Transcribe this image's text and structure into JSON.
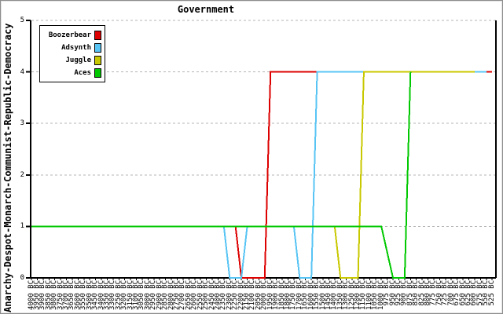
{
  "chart_data": {
    "type": "line",
    "title": "Government",
    "xlabel": "",
    "ylabel": "Anarchy-Despot-Monarch-Communist-Republic-Democracy",
    "government_scale": [
      "Anarchy",
      "Despot",
      "Monarch",
      "Communist",
      "Republic",
      "Democracy"
    ],
    "ylim": [
      0,
      5
    ],
    "yticks": [
      0,
      1,
      2,
      3,
      4,
      5
    ],
    "grid": "horizontal dashed gridlines at 1-5",
    "legend_position": "top-left",
    "x_tick_labels": [
      "4000 BC",
      "3950 BC",
      "3900 BC",
      "3850 BC",
      "3800 BC",
      "3750 BC",
      "3700 BC",
      "3650 BC",
      "3600 BC",
      "3550 BC",
      "3500 BC",
      "3450 BC",
      "3400 BC",
      "3350 BC",
      "3300 BC",
      "3250 BC",
      "3200 BC",
      "3150 BC",
      "3100 BC",
      "3050 BC",
      "3000 BC",
      "2950 BC",
      "2900 BC",
      "2850 BC",
      "2800 BC",
      "2750 BC",
      "2700 BC",
      "2650 BC",
      "2600 BC",
      "2550 BC",
      "2500 BC",
      "2450 BC",
      "2400 BC",
      "2350 BC",
      "2300 BC",
      "2250 BC",
      "2200 BC",
      "2150 BC",
      "2100 BC",
      "2050 BC",
      "2000 BC",
      "1950 BC",
      "1900 BC",
      "1850 BC",
      "1800 BC",
      "1750 BC",
      "1700 BC",
      "1650 BC",
      "1600 BC",
      "1550 BC",
      "1500 BC",
      "1450 BC",
      "1400 BC",
      "1350 BC",
      "1300 BC",
      "1250 BC",
      "1200 BC",
      "1150 BC",
      "1100 BC",
      "1050 BC",
      "1000 BC",
      "975 BC",
      "950 BC",
      "925 BC",
      "900 BC",
      "875 BC",
      "850 BC",
      "825 BC",
      "800 BC",
      "775 BC",
      "750 BC",
      "725 BC",
      "700 BC",
      "675 BC",
      "650 BC",
      "625 BC",
      "600 BC",
      "575 BC",
      "550 BC",
      "525 BC"
    ],
    "series": [
      {
        "name": "Boozerbear",
        "color": "#dd0000",
        "points_turn_value": [
          [
            0,
            1
          ],
          [
            35,
            1
          ],
          [
            36,
            0
          ],
          [
            40,
            0
          ],
          [
            41,
            4
          ],
          [
            79,
            4
          ]
        ]
      },
      {
        "name": "Adsynth",
        "color": "#58c4f4",
        "points_turn_value": [
          [
            0,
            1
          ],
          [
            33,
            1
          ],
          [
            34,
            0
          ],
          [
            36,
            0
          ],
          [
            37,
            1
          ],
          [
            45,
            1
          ],
          [
            46,
            0
          ],
          [
            48,
            0
          ],
          [
            49,
            4
          ],
          [
            78,
            4
          ]
        ]
      },
      {
        "name": "Juggle",
        "color": "#c8c800",
        "points_turn_value": [
          [
            0,
            1
          ],
          [
            52,
            1
          ],
          [
            53,
            0
          ],
          [
            56,
            0
          ],
          [
            57,
            4
          ],
          [
            76,
            4
          ]
        ]
      },
      {
        "name": "Aces",
        "color": "#00c800",
        "points_turn_value": [
          [
            0,
            1
          ],
          [
            60,
            1
          ],
          [
            62,
            0
          ],
          [
            64,
            0
          ],
          [
            65,
            4
          ]
        ]
      }
    ]
  }
}
